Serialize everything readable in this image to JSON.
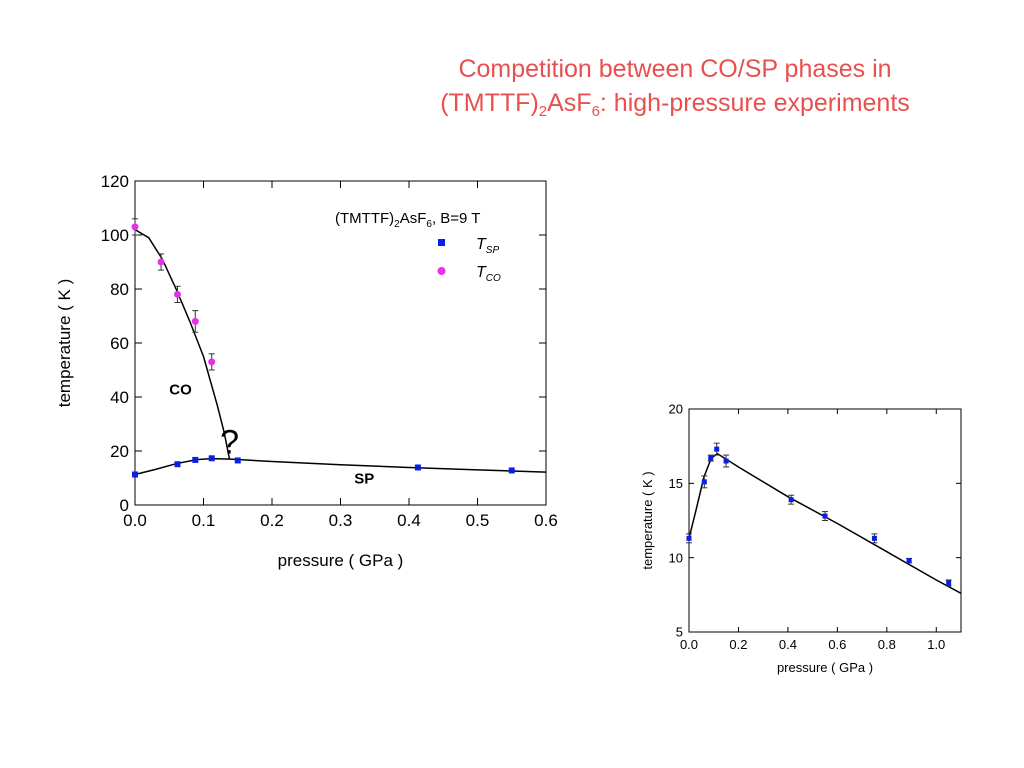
{
  "title": {
    "line1": "Competition between CO/SP phases in",
    "line2_prefix": "(TMTTF)",
    "line2_sub1": "2",
    "line2_mid": "AsF",
    "line2_sub2": "6",
    "line2_suffix": ": high-pressure experiments",
    "color": "#e8504f"
  },
  "chart_data": [
    {
      "type": "scatter",
      "xlabel": "pressure ( GPa )",
      "ylabel": "temperature ( K )",
      "xlim": [
        0,
        0.6
      ],
      "ylim": [
        0,
        120
      ],
      "xticks": [
        0.0,
        0.1,
        0.2,
        0.3,
        0.4,
        0.5,
        0.6
      ],
      "xtick_labels": [
        "0.0",
        "0.1",
        "0.2",
        "0.3",
        "0.4",
        "0.5",
        "0.6"
      ],
      "yticks": [
        0,
        20,
        40,
        60,
        80,
        100,
        120
      ],
      "ytick_labels": [
        "0",
        "20",
        "40",
        "60",
        "80",
        "100",
        "120"
      ],
      "grid": false,
      "legend": {
        "position": "top-right",
        "header": {
          "prefix": "(TMTTF)",
          "sub1": "2",
          "mid": "AsF",
          "sub2": "6",
          "suffix": ", B=9 T"
        },
        "entries": [
          {
            "symbol": "T",
            "subscript": "SP",
            "color": "#0a1ee6",
            "marker": "square"
          },
          {
            "symbol": "T",
            "subscript": "CO",
            "color": "#e632e6",
            "marker": "circle"
          }
        ]
      },
      "series": [
        {
          "name_symbol": "T",
          "name_subscript": "SP",
          "marker": "square",
          "color": "#0a1ee6",
          "x": [
            0.0,
            0.062,
            0.088,
            0.112,
            0.15,
            0.413,
            0.55
          ],
          "y": [
            11.3,
            15.1,
            16.7,
            17.3,
            16.5,
            13.9,
            12.8
          ]
        },
        {
          "name_symbol": "T",
          "name_subscript": "CO",
          "marker": "circle",
          "color": "#e632e6",
          "x": [
            0.0,
            0.038,
            0.062,
            0.088,
            0.112
          ],
          "y": [
            103,
            90,
            78,
            68,
            53
          ],
          "yerr": [
            3,
            3,
            3,
            4,
            3
          ]
        }
      ],
      "annotations": [
        {
          "text": "CO",
          "x": 0.05,
          "y": 41,
          "bold": true
        },
        {
          "text": "SP",
          "x": 0.32,
          "y": 8,
          "bold": true
        },
        {
          "text": "?",
          "x": 0.138,
          "y": 19,
          "color": "#e52222"
        }
      ],
      "fit_lines": [
        {
          "name": "CO boundary",
          "x": [
            0.0,
            0.02,
            0.04,
            0.06,
            0.08,
            0.1,
            0.12,
            0.13,
            0.138
          ],
          "y": [
            102,
            99,
            91,
            80,
            68,
            55,
            37,
            27,
            17
          ]
        },
        {
          "name": "SP boundary",
          "x": [
            0.0,
            0.03,
            0.06,
            0.09,
            0.112,
            0.14,
            0.2,
            0.3,
            0.4,
            0.5,
            0.6
          ],
          "y": [
            11.3,
            13.2,
            15.3,
            16.8,
            17.2,
            17.0,
            16.1,
            14.9,
            13.9,
            13.0,
            12.2
          ]
        }
      ]
    },
    {
      "type": "scatter",
      "xlabel": "pressure ( GPa )",
      "ylabel": "temperature ( K )",
      "xlim": [
        0,
        1.1
      ],
      "ylim": [
        5,
        20
      ],
      "xticks": [
        0.0,
        0.2,
        0.4,
        0.6,
        0.8,
        1.0
      ],
      "xtick_labels": [
        "0.0",
        "0.2",
        "0.4",
        "0.6",
        "0.8",
        "1.0"
      ],
      "yticks": [
        5,
        10,
        15,
        20
      ],
      "ytick_labels": [
        "5",
        "10",
        "15",
        "20"
      ],
      "grid": false,
      "series": [
        {
          "marker": "square",
          "color": "#0a1ee6",
          "x": [
            0.0,
            0.062,
            0.088,
            0.112,
            0.15,
            0.413,
            0.55,
            0.75,
            0.89,
            1.05
          ],
          "y": [
            11.3,
            15.1,
            16.7,
            17.3,
            16.5,
            13.9,
            12.8,
            11.3,
            9.8,
            8.3
          ],
          "yerr": [
            0.3,
            0.4,
            0.2,
            0.4,
            0.4,
            0.3,
            0.3,
            0.3,
            0.15,
            0.2
          ]
        }
      ],
      "fit_lines": [
        {
          "name": "SP boundary",
          "x": [
            0.0,
            0.03,
            0.06,
            0.09,
            0.115,
            0.2,
            0.4,
            0.6,
            0.8,
            1.0,
            1.1
          ],
          "y": [
            11.3,
            13.3,
            15.4,
            16.7,
            17.0,
            16.1,
            14.1,
            12.3,
            10.4,
            8.5,
            7.6
          ]
        }
      ]
    }
  ]
}
